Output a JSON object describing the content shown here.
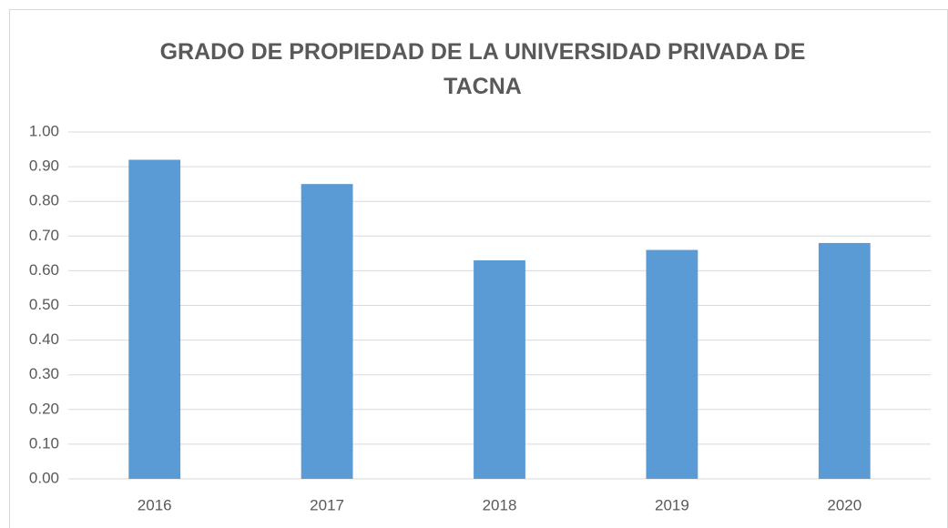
{
  "chart_data": {
    "type": "bar",
    "title": "GRADO DE PROPIEDAD DE LA UNIVERSIDAD PRIVADA DE TACNA",
    "categories": [
      "2016",
      "2017",
      "2018",
      "2019",
      "2020"
    ],
    "values": [
      0.92,
      0.85,
      0.63,
      0.66,
      0.68
    ],
    "color": "#5b9bd5",
    "ylim": [
      0,
      1
    ],
    "yticks": [
      {
        "value": 0,
        "label": "0.00"
      },
      {
        "value": 0.1,
        "label": "0.10"
      },
      {
        "value": 0.2,
        "label": "0.20"
      },
      {
        "value": 0.3,
        "label": "0.30"
      },
      {
        "value": 0.4,
        "label": "0.40"
      },
      {
        "value": 0.5,
        "label": "0.50"
      },
      {
        "value": 0.6,
        "label": "0.60"
      },
      {
        "value": 0.7,
        "label": "0.70"
      },
      {
        "value": 0.8,
        "label": "0.80"
      },
      {
        "value": 0.9,
        "label": "0.90"
      },
      {
        "value": 1,
        "label": "1.00"
      }
    ],
    "grid": true
  }
}
